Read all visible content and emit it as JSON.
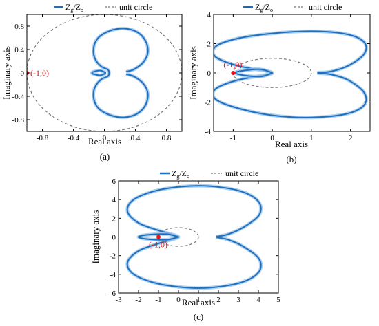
{
  "figure": {
    "legend_nyquist": "Z",
    "legend_nyquist_sub1": "g",
    "legend_nyquist_mid": "/Z",
    "legend_nyquist_sub2": "o",
    "legend_circle": "unit circle",
    "colors": {
      "nyquist": "#1f6fbf",
      "nyquist_glow": "#9cc6ea",
      "circle": "#777777",
      "point": "#e8161a",
      "axis": "#000000"
    }
  },
  "chart_data": [
    {
      "type": "line",
      "panel_label": "(a)",
      "xlabel": "Real axis",
      "ylabel": "Imaginary axis",
      "xlim": [
        -1.0,
        1.0
      ],
      "ylim": [
        -1.0,
        1.0
      ],
      "xticks": [
        -0.8,
        -0.4,
        0,
        0.4,
        0.8
      ],
      "xtick_labels": [
        "-0.8",
        "-0.4",
        "0",
        "0.4",
        "0.8"
      ],
      "yticks": [
        -0.8,
        -0.4,
        0,
        0.4,
        0.8
      ],
      "ytick_labels": [
        "-0.8",
        "-0.4",
        "0",
        "0.4",
        "0.8"
      ],
      "point": {
        "x": -1,
        "y": 0,
        "label": "(-1,0)"
      },
      "unit_circle": {
        "cx": 0,
        "cy": 0,
        "r": 1
      },
      "series": [
        {
          "name": "Zg/Zo",
          "points": [
            [
              0.28,
              0.02
            ],
            [
              0.38,
              0.06
            ],
            [
              0.5,
              0.18
            ],
            [
              0.56,
              0.35
            ],
            [
              0.53,
              0.55
            ],
            [
              0.42,
              0.7
            ],
            [
              0.25,
              0.76
            ],
            [
              0.07,
              0.72
            ],
            [
              -0.08,
              0.6
            ],
            [
              -0.14,
              0.42
            ],
            [
              -0.12,
              0.24
            ],
            [
              -0.04,
              0.11
            ],
            [
              0.05,
              0.05
            ],
            [
              0.05,
              -0.05
            ],
            [
              -0.04,
              -0.11
            ],
            [
              -0.12,
              -0.24
            ],
            [
              -0.14,
              -0.42
            ],
            [
              -0.08,
              -0.6
            ],
            [
              0.07,
              -0.72
            ],
            [
              0.25,
              -0.76
            ],
            [
              0.42,
              -0.7
            ],
            [
              0.53,
              -0.55
            ],
            [
              0.56,
              -0.35
            ],
            [
              0.5,
              -0.18
            ],
            [
              0.38,
              -0.06
            ],
            [
              0.28,
              -0.02
            ]
          ]
        },
        {
          "name": "Zg/Zo (inner)",
          "points": [
            [
              0.02,
              0.0
            ],
            [
              -0.05,
              0.04
            ],
            [
              -0.14,
              0.02
            ],
            [
              -0.16,
              0.0
            ],
            [
              -0.14,
              -0.02
            ],
            [
              -0.05,
              -0.04
            ],
            [
              0.02,
              0.0
            ]
          ]
        }
      ]
    },
    {
      "type": "line",
      "panel_label": "(b)",
      "xlabel": "Real axis",
      "ylabel": "Imaginary axis",
      "xlim": [
        -1.5,
        2.5
      ],
      "ylim": [
        -4,
        4
      ],
      "xticks": [
        -1,
        0,
        1,
        2
      ],
      "xtick_labels": [
        "-1",
        "0",
        "1",
        "2"
      ],
      "yticks": [
        -4,
        -2,
        0,
        2,
        4
      ],
      "ytick_labels": [
        "-4",
        "-2",
        "0",
        "2",
        "4"
      ],
      "point": {
        "x": -1,
        "y": 0,
        "label": "(-1,0)"
      },
      "unit_circle": {
        "cx": 0,
        "cy": 0,
        "r": 1
      },
      "series": [
        {
          "name": "Zg/Zo",
          "points": [
            [
              1.15,
              0.02
            ],
            [
              1.5,
              0.1
            ],
            [
              1.95,
              0.5
            ],
            [
              2.35,
              1.3
            ],
            [
              2.35,
              2.1
            ],
            [
              1.9,
              2.65
            ],
            [
              1.0,
              2.85
            ],
            [
              0.0,
              2.7
            ],
            [
              -0.9,
              2.35
            ],
            [
              -1.45,
              1.8
            ],
            [
              -1.45,
              1.1
            ],
            [
              -0.9,
              0.5
            ],
            [
              -0.2,
              0.15
            ],
            [
              0.0,
              0.0
            ],
            [
              -0.2,
              -0.15
            ],
            [
              -0.9,
              -0.5
            ],
            [
              -1.45,
              -1.1
            ],
            [
              -1.45,
              -1.8
            ],
            [
              -0.9,
              -2.4
            ],
            [
              0.0,
              -2.9
            ],
            [
              1.0,
              -3.05
            ],
            [
              1.9,
              -2.8
            ],
            [
              2.35,
              -2.2
            ],
            [
              2.35,
              -1.35
            ],
            [
              1.95,
              -0.5
            ],
            [
              1.5,
              -0.1
            ],
            [
              1.15,
              -0.02
            ]
          ]
        },
        {
          "name": "Zg/Zo (inner)",
          "points": [
            [
              0.0,
              0.0
            ],
            [
              -0.3,
              0.25
            ],
            [
              -0.75,
              0.15
            ],
            [
              -0.95,
              0.0
            ],
            [
              -0.75,
              -0.15
            ],
            [
              -0.3,
              -0.25
            ],
            [
              0.0,
              0.0
            ]
          ]
        }
      ]
    },
    {
      "type": "line",
      "panel_label": "(c)",
      "xlabel": "Real axis",
      "ylabel": "Imaginary axis",
      "xlim": [
        -3,
        5
      ],
      "ylim": [
        -6,
        6
      ],
      "xticks": [
        -3,
        -2,
        -1,
        0,
        1,
        2,
        3,
        4,
        5
      ],
      "xtick_labels": [
        "-3",
        "-2",
        "-1",
        "0",
        "1",
        "2",
        "3",
        "4",
        "5"
      ],
      "yticks": [
        -6,
        -4,
        -2,
        0,
        2,
        4,
        6
      ],
      "ytick_labels": [
        "-6",
        "-4",
        "-2",
        "0",
        "2",
        "4",
        "6"
      ],
      "point": {
        "x": -1,
        "y": 0,
        "label": "(-1,0)"
      },
      "unit_circle": {
        "cx": 0,
        "cy": 0,
        "r": 1
      },
      "series": [
        {
          "name": "Zg/Zo",
          "points": [
            [
              1.9,
              0.05
            ],
            [
              2.5,
              0.3
            ],
            [
              3.3,
              1.1
            ],
            [
              4.05,
              2.4
            ],
            [
              4.0,
              3.8
            ],
            [
              3.1,
              4.9
            ],
            [
              1.5,
              5.45
            ],
            [
              0.0,
              5.35
            ],
            [
              -1.3,
              4.85
            ],
            [
              -2.3,
              3.9
            ],
            [
              -2.55,
              2.7
            ],
            [
              -2.0,
              1.5
            ],
            [
              -1.0,
              0.7
            ],
            [
              -0.2,
              0.2
            ],
            [
              0.0,
              0.0
            ],
            [
              -0.2,
              -0.2
            ],
            [
              -1.0,
              -0.7
            ],
            [
              -2.0,
              -1.5
            ],
            [
              -2.55,
              -2.7
            ],
            [
              -2.3,
              -3.9
            ],
            [
              -1.3,
              -4.85
            ],
            [
              0.0,
              -5.35
            ],
            [
              1.5,
              -5.45
            ],
            [
              3.1,
              -4.9
            ],
            [
              4.0,
              -3.8
            ],
            [
              4.05,
              -2.4
            ],
            [
              3.3,
              -1.1
            ],
            [
              2.5,
              -0.3
            ],
            [
              1.9,
              -0.05
            ]
          ]
        },
        {
          "name": "Zg/Zo (inner)",
          "points": [
            [
              0.0,
              0.0
            ],
            [
              -0.6,
              0.3
            ],
            [
              -1.6,
              0.22
            ],
            [
              -2.0,
              0.0
            ],
            [
              -1.6,
              -0.22
            ],
            [
              -0.6,
              -0.3
            ],
            [
              0.0,
              0.0
            ]
          ]
        }
      ]
    }
  ]
}
